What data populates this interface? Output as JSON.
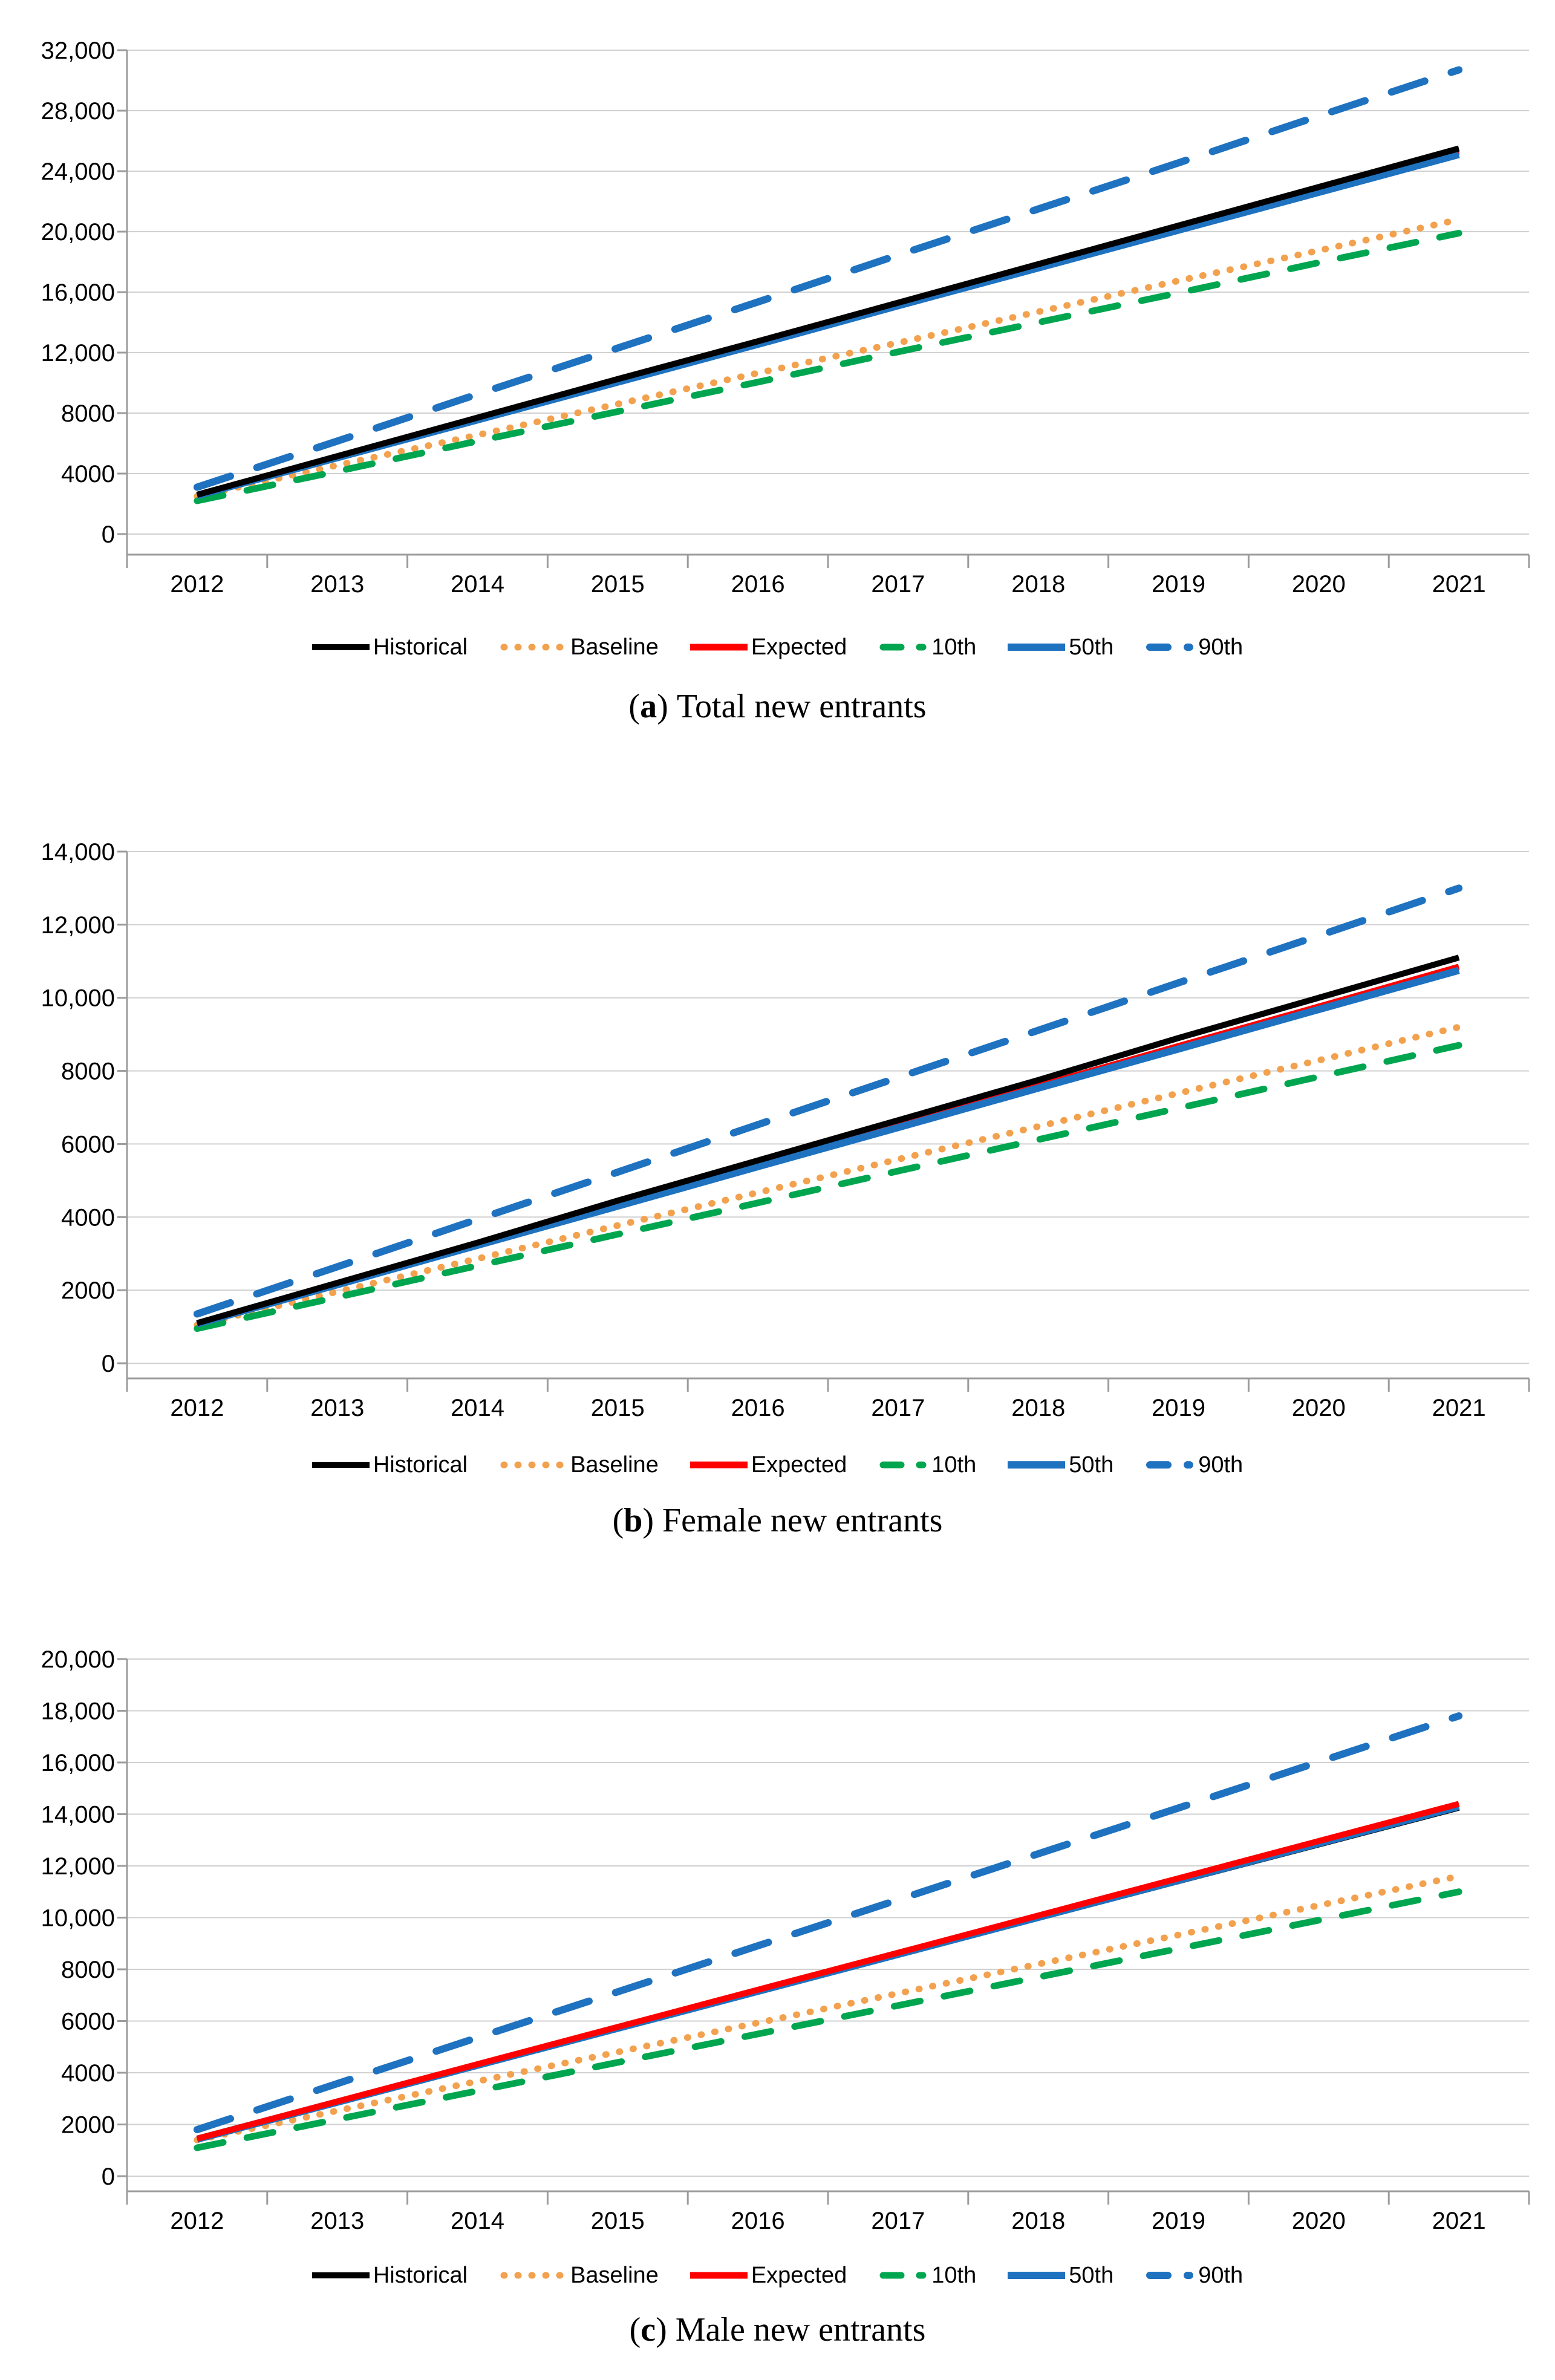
{
  "page": {
    "background": "#ffffff"
  },
  "captions": [
    {
      "open": "(",
      "letter": "a",
      "close": ")",
      "text": "Total new entrants"
    },
    {
      "open": "(",
      "letter": "b",
      "close": ")",
      "text": "Female new entrants"
    },
    {
      "open": "(",
      "letter": "c",
      "close": ")",
      "text": "Male new entrants"
    }
  ],
  "colors": {
    "historical": "#000000",
    "baseline": "#F2A14E",
    "expected": "#FF0000",
    "p10": "#00A64F",
    "p50": "#1F72BF",
    "p90": "#1F72BF",
    "gridline": "#D1D1D1",
    "axis": "#9C9C9C"
  },
  "chart_data": [
    {
      "type": "line",
      "title": "(a) Total new entrants",
      "x": [
        2012,
        2013,
        2014,
        2015,
        2016,
        2017,
        2018,
        2019,
        2020,
        2021
      ],
      "ylim": [
        0,
        32000
      ],
      "ytick_step": 4000,
      "ytick_labels": [
        "32,000",
        "28,000",
        "24,000",
        "20,000",
        "16,000",
        "12,000",
        "8000",
        "4000",
        "0"
      ],
      "grid": true,
      "legend_position": "bottom",
      "series": [
        {
          "name": "Historical",
          "color": "#000000",
          "style": "solid",
          "values": [
            2600,
            5150,
            7700,
            10250,
            12750,
            15300,
            17850,
            20400,
            22950,
            25500
          ]
        },
        {
          "name": "Baseline",
          "color": "#F2A14E",
          "style": "dotted",
          "values": [
            2500,
            4550,
            6550,
            8600,
            10650,
            12650,
            14700,
            16750,
            18750,
            20800
          ]
        },
        {
          "name": "Expected",
          "color": "#FF0000",
          "style": "solid",
          "values": [
            2550,
            5100,
            7600,
            10150,
            12650,
            15200,
            17700,
            20250,
            22750,
            25300
          ]
        },
        {
          "name": "10th",
          "color": "#00A64F",
          "style": "dashed",
          "values": [
            2200,
            4150,
            6150,
            8100,
            10050,
            12050,
            14000,
            15950,
            17950,
            19900
          ]
        },
        {
          "name": "50th",
          "color": "#1F72BF",
          "style": "solid",
          "values": [
            2550,
            5050,
            7550,
            10050,
            12550,
            15100,
            17600,
            20100,
            22600,
            25100
          ]
        },
        {
          "name": "90th",
          "color": "#1F72BF",
          "style": "dashed",
          "values": [
            3100,
            6150,
            9250,
            12300,
            15350,
            18450,
            21500,
            24550,
            27650,
            30700
          ]
        }
      ]
    },
    {
      "type": "line",
      "title": "(b) Female new entrants",
      "x": [
        2012,
        2013,
        2014,
        2015,
        2016,
        2017,
        2018,
        2019,
        2020,
        2021
      ],
      "ylim": [
        0,
        14000
      ],
      "ytick_step": 2000,
      "ytick_labels": [
        "14,000",
        "12,000",
        "10,000",
        "8000",
        "6000",
        "4000",
        "2000",
        "0"
      ],
      "grid": true,
      "legend_position": "bottom",
      "series": [
        {
          "name": "Historical",
          "color": "#000000",
          "style": "solid",
          "values": [
            1100,
            2200,
            3300,
            4450,
            5550,
            6650,
            7750,
            8900,
            10000,
            11100
          ]
        },
        {
          "name": "Baseline",
          "color": "#F2A14E",
          "style": "dotted",
          "values": [
            1050,
            1960,
            2860,
            3770,
            4670,
            5580,
            6480,
            7390,
            8290,
            9200
          ]
        },
        {
          "name": "Expected",
          "color": "#FF0000",
          "style": "solid",
          "values": [
            1080,
            2170,
            3250,
            4340,
            5420,
            6510,
            7590,
            8680,
            9760,
            10850
          ]
        },
        {
          "name": "10th",
          "color": "#00A64F",
          "style": "dashed",
          "values": [
            950,
            1810,
            2670,
            3530,
            4390,
            5260,
            6120,
            6980,
            7840,
            8700
          ]
        },
        {
          "name": "50th",
          "color": "#1F72BF",
          "style": "solid",
          "values": [
            1080,
            2150,
            3230,
            4300,
            5380,
            6450,
            7530,
            8600,
            9680,
            10750
          ]
        },
        {
          "name": "90th",
          "color": "#1F72BF",
          "style": "dashed",
          "values": [
            1350,
            2640,
            3940,
            5230,
            6530,
            7820,
            9110,
            10410,
            11700,
            13000
          ]
        }
      ]
    },
    {
      "type": "line",
      "title": "(c) Male new entrants",
      "x": [
        2012,
        2013,
        2014,
        2015,
        2016,
        2017,
        2018,
        2019,
        2020,
        2021
      ],
      "ylim": [
        0,
        20000
      ],
      "ytick_step": 2000,
      "ytick_labels": [
        "20,000",
        "18,000",
        "16,000",
        "14,000",
        "12,000",
        "10,000",
        "8000",
        "6000",
        "4000",
        "2000",
        "0"
      ],
      "grid": true,
      "legend_position": "bottom",
      "series": [
        {
          "name": "Historical",
          "color": "#000000",
          "style": "solid",
          "values": [
            1450,
            2870,
            4290,
            5720,
            7140,
            8560,
            9990,
            11410,
            12830,
            14250
          ]
        },
        {
          "name": "Baseline",
          "color": "#F2A14E",
          "style": "dotted",
          "values": [
            1400,
            2530,
            3670,
            4800,
            5930,
            7070,
            8200,
            9330,
            10470,
            11600
          ]
        },
        {
          "name": "Expected",
          "color": "#FF0000",
          "style": "solid",
          "values": [
            1450,
            2890,
            4330,
            5770,
            7210,
            8640,
            10080,
            11520,
            12960,
            14400
          ]
        },
        {
          "name": "10th",
          "color": "#00A64F",
          "style": "dashed",
          "values": [
            1100,
            2200,
            3300,
            4400,
            5500,
            6600,
            7700,
            8800,
            9900,
            11000
          ]
        },
        {
          "name": "50th",
          "color": "#1F72BF",
          "style": "solid",
          "values": [
            1430,
            2860,
            4290,
            5720,
            7150,
            8580,
            10010,
            11440,
            12870,
            14300
          ]
        },
        {
          "name": "90th",
          "color": "#1F72BF",
          "style": "dashed",
          "values": [
            1800,
            3580,
            5360,
            7130,
            8910,
            10690,
            12470,
            14240,
            16020,
            17800
          ]
        }
      ]
    }
  ]
}
